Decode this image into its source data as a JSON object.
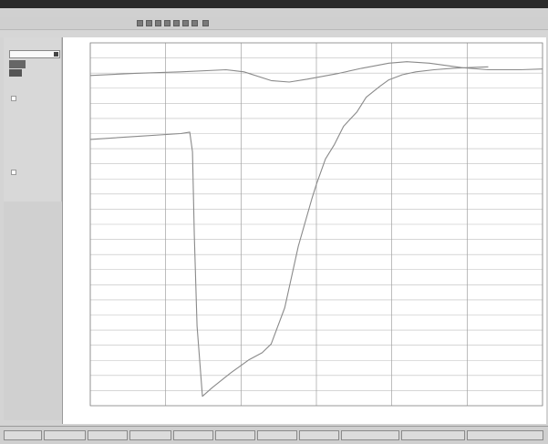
{
  "window": {
    "title": ""
  },
  "menu": {
    "items": [
      "",
      "",
      "",
      "",
      "",
      ""
    ]
  },
  "toolbar": {
    "right_text": ""
  },
  "subbar": {
    "right_text": ""
  },
  "sidebar": {
    "select_value": "",
    "chip1": "",
    "chip2": "",
    "chip_label": ""
  },
  "status": {
    "cells": [
      "",
      "",
      "",
      "",
      "",
      "",
      "",
      "",
      "",
      "",
      ""
    ]
  },
  "chart_data": {
    "type": "line",
    "title": "",
    "xlabel": "",
    "ylabel": "",
    "xlim": [
      0,
      100
    ],
    "ylim": [
      0,
      100
    ],
    "grid": true,
    "series": [
      {
        "x": [
          0,
          10,
          20,
          30,
          34,
          40,
          44,
          48,
          55,
          60,
          66,
          70,
          75,
          82,
          88,
          95,
          100
        ],
        "y": [
          91.0,
          91.6,
          92.0,
          92.6,
          92.0,
          89.6,
          89.2,
          90.0,
          91.6,
          93.0,
          94.4,
          94.8,
          94.4,
          93.2,
          92.6,
          92.6,
          92.8
        ]
      },
      {
        "x": [
          0,
          10,
          20,
          22,
          22.6,
          23,
          23.6,
          24.8,
          27,
          31,
          35,
          38,
          40,
          43,
          46,
          49,
          50,
          52,
          54,
          56,
          59,
          61,
          64,
          66,
          69,
          72,
          76,
          80,
          84,
          88
        ],
        "y": [
          73.4,
          74.2,
          75.0,
          75.4,
          70,
          47,
          22,
          2.6,
          5,
          9,
          12.6,
          14.6,
          17,
          27,
          44,
          57,
          61,
          68,
          72,
          77,
          81,
          85,
          88,
          89.8,
          91.2,
          92.0,
          92.6,
          93.0,
          93.2,
          93.4
        ]
      }
    ]
  }
}
